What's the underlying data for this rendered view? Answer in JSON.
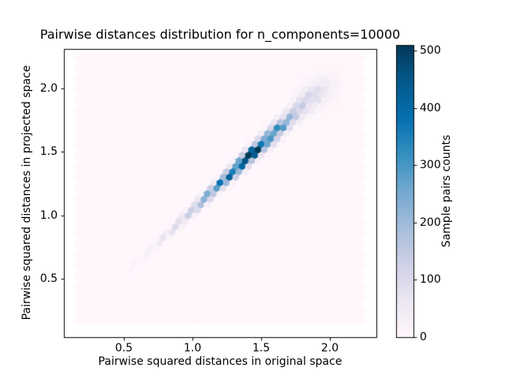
{
  "figure": {
    "background": "#ffffff",
    "text_color": "#000000",
    "spine_color": "#000000"
  },
  "chart_data": {
    "type": "hexbin",
    "title": "Pairwise distances distribution for n_components=10000",
    "xlabel": "Pairwise squared distances in original space",
    "ylabel": "Pairwise squared distances in projected space",
    "colorbar_label": "Sample pairs counts",
    "xlim": [
      0.063,
      2.339
    ],
    "ylim": [
      0.04,
      2.31
    ],
    "x_ticks": [
      0.5,
      1.0,
      1.5,
      2.0
    ],
    "x_tick_labels": [
      "0.5",
      "1.0",
      "1.5",
      "2.0"
    ],
    "y_ticks": [
      0.5,
      1.0,
      1.5,
      2.0
    ],
    "y_tick_labels": [
      "0.5",
      "1.0",
      "1.5",
      "2.0"
    ],
    "colorbar_ticks": [
      0,
      100,
      200,
      300,
      400,
      500
    ],
    "colorbar_tick_labels": [
      "0",
      "100",
      "200",
      "300",
      "400",
      "500"
    ],
    "vmin": 0,
    "vmax": 510,
    "grid": false,
    "extent": {
      "x": [
        0.16,
        2.24
      ],
      "y": [
        0.13,
        2.25
      ]
    },
    "gridsize": 45,
    "colormap": {
      "name": "PuBu",
      "stops": [
        [
          0.0,
          "#fff7fb"
        ],
        [
          0.125,
          "#ece7f2"
        ],
        [
          0.25,
          "#d0d1e6"
        ],
        [
          0.375,
          "#a6bddb"
        ],
        [
          0.5,
          "#74a9cf"
        ],
        [
          0.625,
          "#3690c0"
        ],
        [
          0.75,
          "#0570b0"
        ],
        [
          0.875,
          "#045a8d"
        ],
        [
          1.0,
          "#023858"
        ]
      ]
    },
    "band": {
      "description": "dense diagonal ridge of sample-pair counts, projected distances ~ original distances",
      "centerline": {
        "x0": 0.45,
        "y0": 0.47,
        "x1": 2.01,
        "y1": 2.07
      },
      "profile": {
        "x": [
          0.45,
          0.55,
          0.65,
          0.75,
          0.85,
          0.95,
          1.05,
          1.15,
          1.25,
          1.35,
          1.42,
          1.5,
          1.6,
          1.7,
          1.8,
          1.9,
          2.01
        ],
        "count": [
          5,
          15,
          30,
          55,
          95,
          140,
          200,
          270,
          365,
          480,
          505,
          455,
          330,
          205,
          110,
          50,
          18
        ],
        "sigma": [
          0.01,
          0.011,
          0.013,
          0.015,
          0.017,
          0.019,
          0.021,
          0.023,
          0.025,
          0.027,
          0.028,
          0.03,
          0.033,
          0.036,
          0.042,
          0.05,
          0.058
        ]
      },
      "halo": {
        "x": 1.9,
        "y": 1.95,
        "sigma": 0.085,
        "amplitude": 35
      },
      "peak_count": 505
    }
  }
}
